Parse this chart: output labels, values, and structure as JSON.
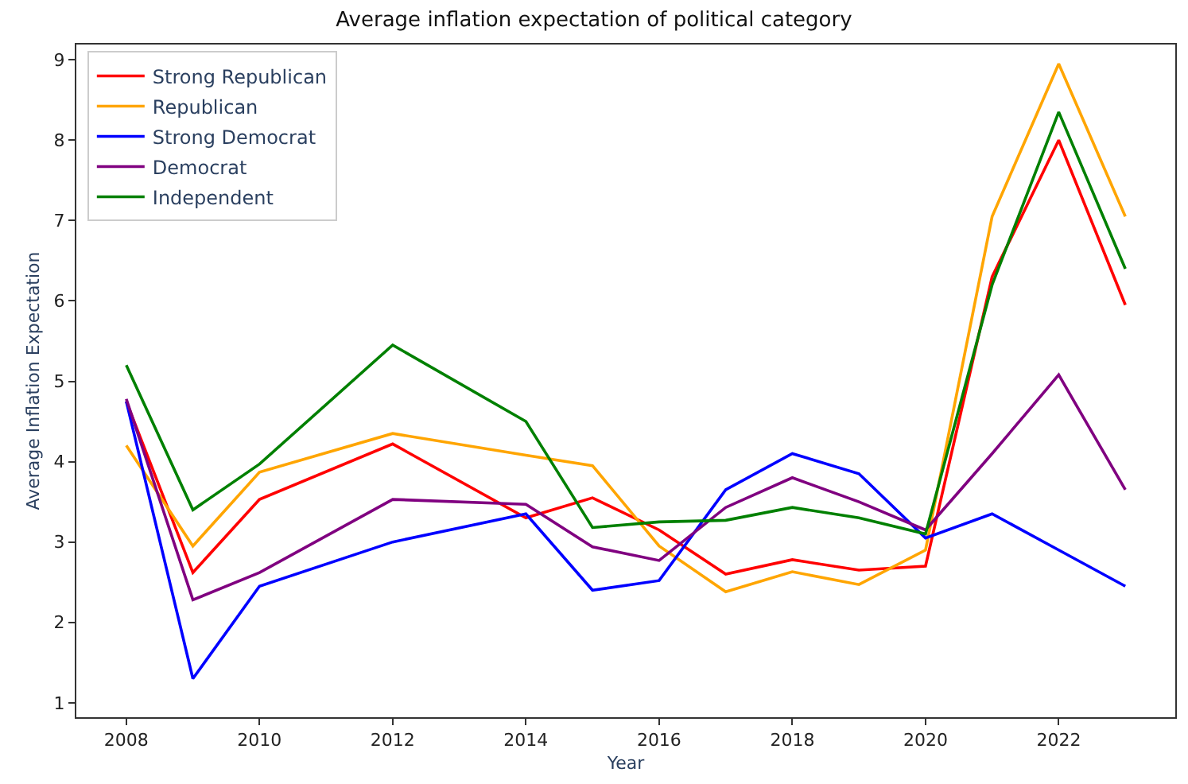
{
  "chart_data": {
    "type": "line",
    "title": "Average inflation expectation of political category",
    "xlabel": "Year",
    "ylabel": "Average Inflation Expectation",
    "x": [
      2008,
      2009,
      2010,
      2012,
      2014,
      2015,
      2016,
      2017,
      2018,
      2019,
      2020,
      2021,
      2022,
      2023
    ],
    "series": [
      {
        "name": "Strong Republican",
        "color": "#ff0000",
        "values": [
          4.75,
          2.62,
          3.53,
          4.22,
          3.3,
          3.55,
          3.15,
          2.6,
          2.78,
          2.65,
          2.7,
          6.3,
          8.0,
          5.95
        ]
      },
      {
        "name": "Republican",
        "color": "#ffa500",
        "values": [
          4.2,
          2.95,
          3.87,
          4.35,
          4.08,
          3.95,
          2.95,
          2.38,
          2.63,
          2.47,
          2.9,
          7.05,
          8.95,
          7.05
        ]
      },
      {
        "name": "Strong Democrat",
        "color": "#0000ff",
        "values": [
          4.75,
          1.3,
          2.45,
          3.0,
          3.35,
          2.4,
          2.52,
          3.65,
          4.1,
          3.85,
          3.05,
          3.35,
          2.9,
          2.45
        ]
      },
      {
        "name": "Democrat",
        "color": "#800080",
        "values": [
          4.78,
          2.28,
          2.62,
          3.53,
          3.47,
          2.94,
          2.77,
          3.43,
          3.8,
          3.5,
          3.15,
          4.1,
          5.08,
          3.65
        ]
      },
      {
        "name": "Independent",
        "color": "#008000",
        "values": [
          5.2,
          3.4,
          3.97,
          5.45,
          4.5,
          3.18,
          3.25,
          3.27,
          3.43,
          3.3,
          3.1,
          6.2,
          8.35,
          6.4
        ]
      }
    ],
    "xlim": [
      2007.25,
      2023.75
    ],
    "xticks": [
      2008,
      2010,
      2012,
      2014,
      2016,
      2018,
      2020,
      2022
    ],
    "ylim": [
      0.82,
      9.19
    ],
    "yticks": [
      1,
      2,
      3,
      4,
      5,
      6,
      7,
      8,
      9
    ],
    "legend": "top left",
    "marker": "none",
    "line_style": "solid"
  }
}
